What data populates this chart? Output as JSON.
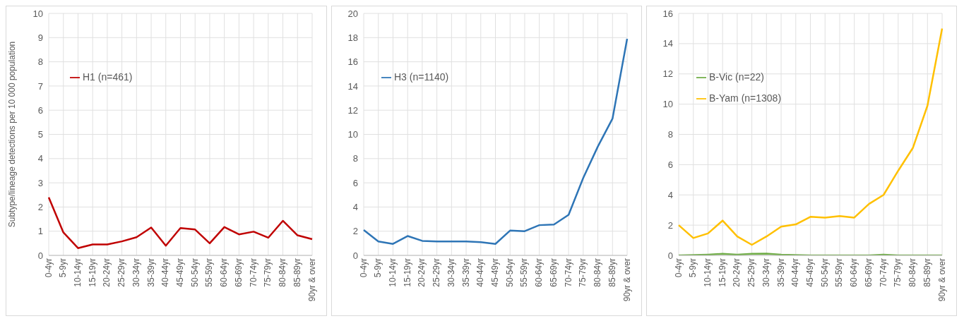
{
  "chart_data": [
    {
      "type": "line",
      "ylabel": "Subtype/lineage detections per 10 000 population",
      "categories": [
        "0-4yr",
        "5-9yr",
        "10-14yr",
        "15-19yr",
        "20-24yr",
        "25-29yr",
        "30-34yr",
        "35-39yr",
        "40-44yr",
        "45-49yr",
        "50-54yr",
        "55-59yr",
        "60-64yr",
        "65-69yr",
        "70-74yr",
        "75-79yr",
        "80-84yr",
        "85-89yr",
        "90yr & over"
      ],
      "series": [
        {
          "name": "H1 (n=461)",
          "color": "#c00000",
          "values": [
            2.4,
            0.95,
            0.3,
            0.45,
            0.45,
            0.58,
            0.75,
            1.15,
            0.4,
            1.13,
            1.07,
            0.5,
            1.17,
            0.87,
            0.98,
            0.73,
            1.43,
            0.83,
            0.67
          ]
        }
      ],
      "ylim": [
        0,
        10
      ],
      "yticks": [
        0,
        1,
        2,
        3,
        4,
        5,
        6,
        7,
        8,
        9,
        10
      ],
      "grid": true,
      "legend": "top left",
      "marker": "none",
      "line_style": "solid"
    },
    {
      "type": "line",
      "categories": [
        "0-4yr",
        "5-9yr",
        "10-14yr",
        "15-19yr",
        "20-24yr",
        "25-29yr",
        "30-34yr",
        "35-39yr",
        "40-44yr",
        "45-49yr",
        "50-54yr",
        "55-59yr",
        "60-64yr",
        "65-69yr",
        "70-74yr",
        "75-79yr",
        "80-84yr",
        "85-89yr",
        "90yr & over"
      ],
      "series": [
        {
          "name": "H3 (n=1140)",
          "color": "#2e75b6",
          "values": [
            2.1,
            1.15,
            0.95,
            1.6,
            1.2,
            1.15,
            1.15,
            1.15,
            1.1,
            0.95,
            2.05,
            2.0,
            2.5,
            2.55,
            3.35,
            6.4,
            9.0,
            11.3,
            17.9
          ]
        }
      ],
      "ylim": [
        0,
        20
      ],
      "yticks": [
        0,
        2,
        4,
        6,
        8,
        10,
        12,
        14,
        16,
        18,
        20
      ],
      "grid": true,
      "legend": "top left",
      "marker": "none",
      "line_style": "solid"
    },
    {
      "type": "line",
      "categories": [
        "0-4yr",
        "5-9yr",
        "10-14yr",
        "15-19yr",
        "20-24yr",
        "25-29yr",
        "30-34yr",
        "35-39yr",
        "40-44yr",
        "45-49yr",
        "50-54yr",
        "55-59yr",
        "60-64yr",
        "65-69yr",
        "70-74yr",
        "75-79yr",
        "80-84yr",
        "85-89yr",
        "90yr & over"
      ],
      "series": [
        {
          "name": "B-Vic (n=22)",
          "color": "#70ad47",
          "values": [
            0,
            0.02,
            0.05,
            0.1,
            0.05,
            0.1,
            0.12,
            0.05,
            0.02,
            0,
            0,
            0,
            0,
            0,
            0.05,
            0,
            0,
            0,
            0
          ]
        },
        {
          "name": "B-Yam (n=1308)",
          "color": "#ffc000",
          "values": [
            2.0,
            1.15,
            1.45,
            2.3,
            1.25,
            0.7,
            1.25,
            1.9,
            2.05,
            2.55,
            2.5,
            2.6,
            2.5,
            3.4,
            4.0,
            5.6,
            7.1,
            9.9,
            15.0
          ]
        }
      ],
      "ylim": [
        0,
        16
      ],
      "yticks": [
        0,
        2,
        4,
        6,
        8,
        10,
        12,
        14,
        16
      ],
      "grid": true,
      "legend": "top left",
      "marker": "none",
      "line_style": "solid"
    }
  ]
}
